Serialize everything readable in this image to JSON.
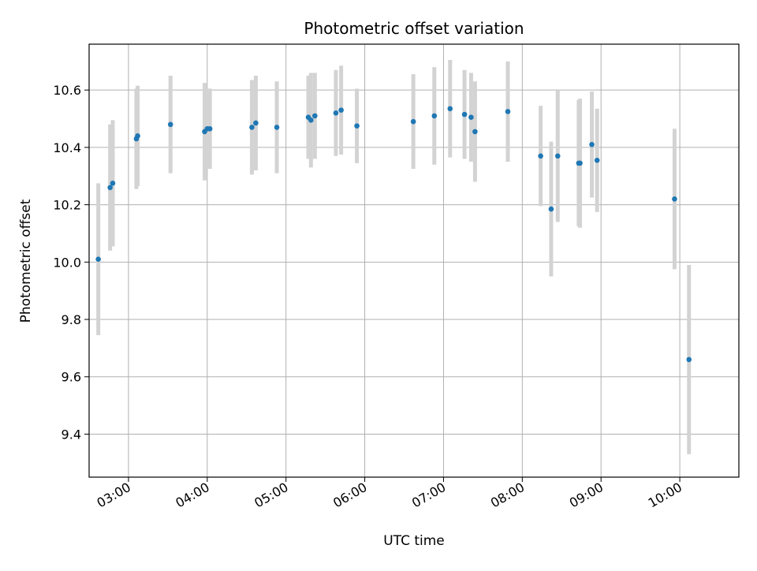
{
  "chart_data": {
    "type": "scatter",
    "title": "Photometric offset variation",
    "xlabel": "UTC time",
    "ylabel": "Photometric offset",
    "x_axis_type": "time",
    "xlim": [
      "02:30",
      "10:45"
    ],
    "ylim": [
      9.25,
      10.76
    ],
    "grid": true,
    "legend": "none",
    "x_ticks": [
      "03:00",
      "04:00",
      "05:00",
      "06:00",
      "07:00",
      "08:00",
      "09:00",
      "10:00"
    ],
    "y_ticks": [
      9.4,
      9.6,
      9.8,
      10.0,
      10.2,
      10.4,
      10.6
    ],
    "colors": {
      "points": "#1f77b4",
      "error_bars": "#d3d3d3",
      "grid": "#b0b0b0"
    },
    "series": [
      {
        "x": [
          "02:37",
          "02:46",
          "02:48",
          "03:06",
          "03:07",
          "03:32",
          "03:58",
          "04:00",
          "04:02",
          "04:34",
          "04:37",
          "04:53",
          "05:17",
          "05:19",
          "05:22",
          "05:38",
          "05:42",
          "05:54",
          "06:37",
          "06:53",
          "07:05",
          "07:16",
          "07:21",
          "07:24",
          "07:49",
          "08:14",
          "08:22",
          "08:27",
          "08:43",
          "08:44",
          "08:53",
          "08:57",
          "09:56",
          "10:07"
        ],
        "y": [
          10.01,
          10.26,
          10.275,
          10.43,
          10.44,
          10.48,
          10.455,
          10.465,
          10.465,
          10.47,
          10.485,
          10.47,
          10.505,
          10.495,
          10.51,
          10.52,
          10.53,
          10.475,
          10.49,
          10.51,
          10.535,
          10.515,
          10.505,
          10.455,
          10.525,
          10.37,
          10.185,
          10.37,
          10.345,
          10.345,
          10.41,
          10.355,
          10.22,
          9.66
        ],
        "err": [
          0.265,
          0.22,
          0.22,
          0.175,
          0.175,
          0.17,
          0.17,
          0.14,
          0.14,
          0.165,
          0.165,
          0.16,
          0.145,
          0.165,
          0.15,
          0.15,
          0.155,
          0.13,
          0.165,
          0.17,
          0.17,
          0.155,
          0.155,
          0.175,
          0.175,
          0.175,
          0.235,
          0.23,
          0.22,
          0.225,
          0.185,
          0.18,
          0.245,
          0.33
        ]
      }
    ]
  }
}
